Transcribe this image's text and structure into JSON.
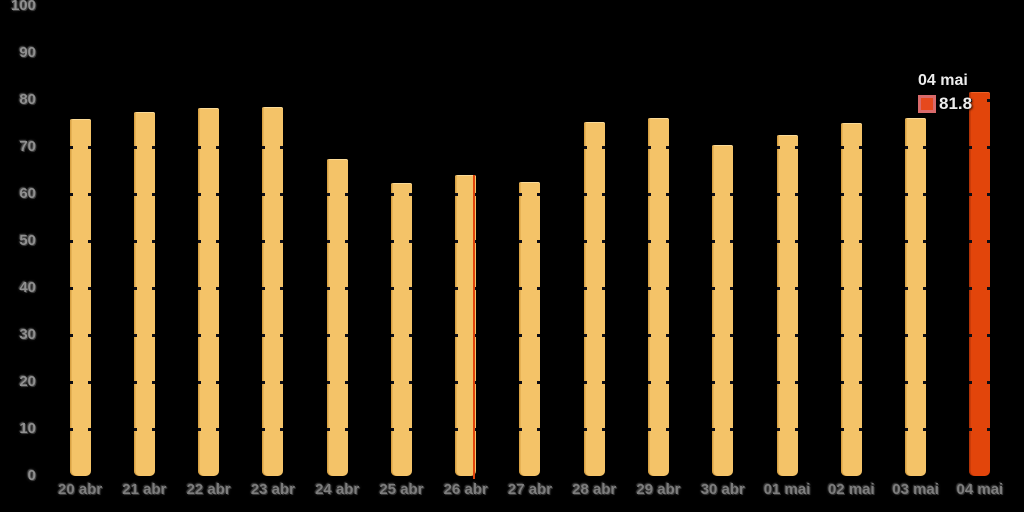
{
  "chart_data": {
    "type": "bar",
    "title": "",
    "xlabel": "",
    "ylabel": "",
    "categories": [
      "20 abr",
      "21 abr",
      "22 abr",
      "23 abr",
      "24 abr",
      "25 abr",
      "26 abr",
      "27 abr",
      "28 abr",
      "29 abr",
      "30 abr",
      "01 mai",
      "02 mai",
      "03 mai",
      "04 mai"
    ],
    "values": [
      76.0,
      77.4,
      78.2,
      78.6,
      67.5,
      62.3,
      64.1,
      62.5,
      75.3,
      76.2,
      70.5,
      72.6,
      75.1,
      76.2,
      81.8
    ],
    "highlight_index": 14,
    "marker_line_index": 6,
    "y_ticks": [
      0,
      10,
      20,
      30,
      40,
      50,
      60,
      70,
      80,
      90,
      100
    ],
    "ylim": [
      0,
      100
    ],
    "grid": "horizontal gridlines visible as dark nicks on bar edges",
    "legend_position": "none"
  },
  "tooltip": {
    "date": "04 mai",
    "value": "81.8"
  },
  "colors": {
    "background": "#000000",
    "bar": "#F4C368",
    "bar_edge": "#D89C3E",
    "highlight_bar": "#E2450B",
    "swatch_border": "#D96A6B",
    "swatch_fill": "#E6491D",
    "grid_nick": "#0C0C14",
    "y_axis_text": "#8F8F8F",
    "x_axis_text": "#7D7D7D",
    "tooltip_text": "#EDEDED"
  }
}
